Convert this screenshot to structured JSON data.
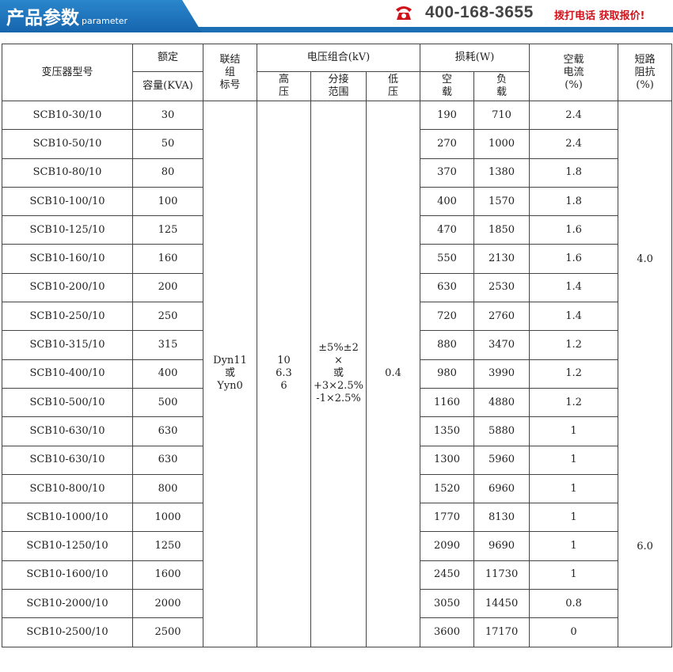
{
  "banner": {
    "title": "产品参数",
    "subtitle": "parameter",
    "phone": "400-168-3655",
    "cta": "拨打电话 获取报价!",
    "icon": "phone-icon",
    "accent": "#1c6fb5",
    "cta_color": "#d0131b"
  },
  "table": {
    "headers": {
      "model": "变压器型号",
      "rated": "额定",
      "capacity": "容量(KVA)",
      "connection": "联结\n组\n标号",
      "voltage": "电压组合(kV)",
      "hv": "高\n压",
      "tap": "分接\n范围",
      "lv": "低\n压",
      "loss": "损耗(W)",
      "noload": "空\n载",
      "load": "负\n载",
      "current": "空载\n电流\n(%)",
      "impedance": "短路\n阻抗\n(%)"
    },
    "connection": "Dyn11\n或\nYyn0",
    "hv": "10\n6.3\n6",
    "tap": "±5%±2\n×\n或\n+3×2.5%\n-1×2.5%",
    "lv": "0.4",
    "impedance": [
      "4.0",
      "6.0"
    ],
    "rows": [
      [
        "SCB10-30/10",
        "30",
        "190",
        "710",
        "2.4"
      ],
      [
        "SCB10-50/10",
        "50",
        "270",
        "1000",
        "2.4"
      ],
      [
        "SCB10-80/10",
        "80",
        "370",
        "1380",
        "1.8"
      ],
      [
        "SCB10-100/10",
        "100",
        "400",
        "1570",
        "1.8"
      ],
      [
        "SCB10-125/10",
        "125",
        "470",
        "1850",
        "1.6"
      ],
      [
        "SCB10-160/10",
        "160",
        "550",
        "2130",
        "1.6"
      ],
      [
        "SCB10-200/10",
        "200",
        "630",
        "2530",
        "1.4"
      ],
      [
        "SCB10-250/10",
        "250",
        "720",
        "2760",
        "1.4"
      ],
      [
        "SCB10-315/10",
        "315",
        "880",
        "3470",
        "1.2"
      ],
      [
        "SCB10-400/10",
        "400",
        "980",
        "3990",
        "1.2"
      ],
      [
        "SCB10-500/10",
        "500",
        "1160",
        "4880",
        "1.2"
      ],
      [
        "SCB10-630/10",
        "630",
        "1350",
        "5880",
        "1"
      ],
      [
        "SCB10-630/10",
        "630",
        "1300",
        "5960",
        "1"
      ],
      [
        "SCB10-800/10",
        "800",
        "1520",
        "6960",
        "1"
      ],
      [
        "SCB10-1000/10",
        "1000",
        "1770",
        "8130",
        "1"
      ],
      [
        "SCB10-1250/10",
        "1250",
        "2090",
        "9690",
        "1"
      ],
      [
        "SCB10-1600/10",
        "1600",
        "2450",
        "11730",
        "1"
      ],
      [
        "SCB10-2000/10",
        "2000",
        "3050",
        "14450",
        "0.8"
      ],
      [
        "SCB10-2500/10",
        "2500",
        "3600",
        "17170",
        "0"
      ]
    ]
  }
}
